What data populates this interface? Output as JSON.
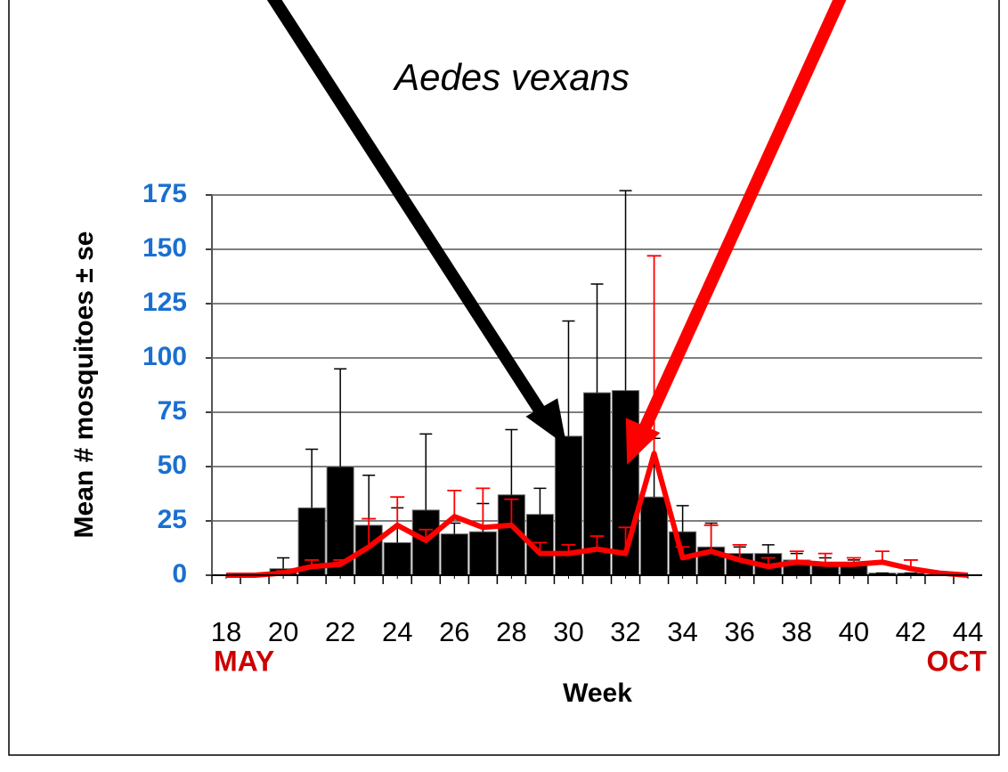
{
  "chart_data": {
    "type": "bar-line",
    "title": "Aedes vexans",
    "y_label": "Mean # mosquitoes ± se",
    "x_label": "Week",
    "annotations": [
      "MAY",
      "OCT"
    ],
    "x": [
      18,
      19,
      20,
      21,
      22,
      23,
      24,
      25,
      26,
      27,
      28,
      29,
      30,
      31,
      32,
      33,
      34,
      35,
      36,
      37,
      38,
      39,
      40,
      41,
      42,
      43,
      44
    ],
    "series": [
      {
        "type": "bar",
        "color": "#000000",
        "values": [
          0,
          0,
          3,
          31,
          50,
          23,
          15,
          30,
          19,
          20,
          37,
          28,
          64,
          84,
          85,
          36,
          20,
          13,
          10,
          10,
          7,
          5,
          5,
          1,
          1,
          0,
          0
        ],
        "errors": [
          0,
          0,
          5,
          27,
          45,
          23,
          16,
          35,
          5,
          13,
          30,
          12,
          53,
          50,
          92,
          27,
          12,
          11,
          3,
          4,
          3,
          3,
          2,
          0,
          0,
          0,
          0
        ]
      },
      {
        "type": "line",
        "color": "#ff0000",
        "values": [
          0,
          0,
          1,
          4,
          5,
          13,
          23,
          16,
          27,
          22,
          23,
          10,
          10,
          12,
          10,
          56,
          8,
          11,
          7,
          4,
          6,
          5,
          5,
          6,
          3,
          1,
          0
        ],
        "errors": [
          0,
          0,
          1,
          3,
          2,
          13,
          13,
          5,
          12,
          18,
          12,
          5,
          4,
          6,
          12,
          91,
          5,
          12,
          7,
          4,
          5,
          5,
          3,
          5,
          4,
          0,
          0
        ]
      }
    ],
    "xlim": [
      17.5,
      44.5
    ],
    "xticks": [
      18,
      20,
      22,
      24,
      26,
      28,
      30,
      32,
      34,
      36,
      38,
      40,
      42,
      44
    ],
    "ylim": [
      0,
      175
    ],
    "yticks": [
      0,
      25,
      50,
      75,
      100,
      125,
      150,
      175
    ],
    "grid": true
  }
}
